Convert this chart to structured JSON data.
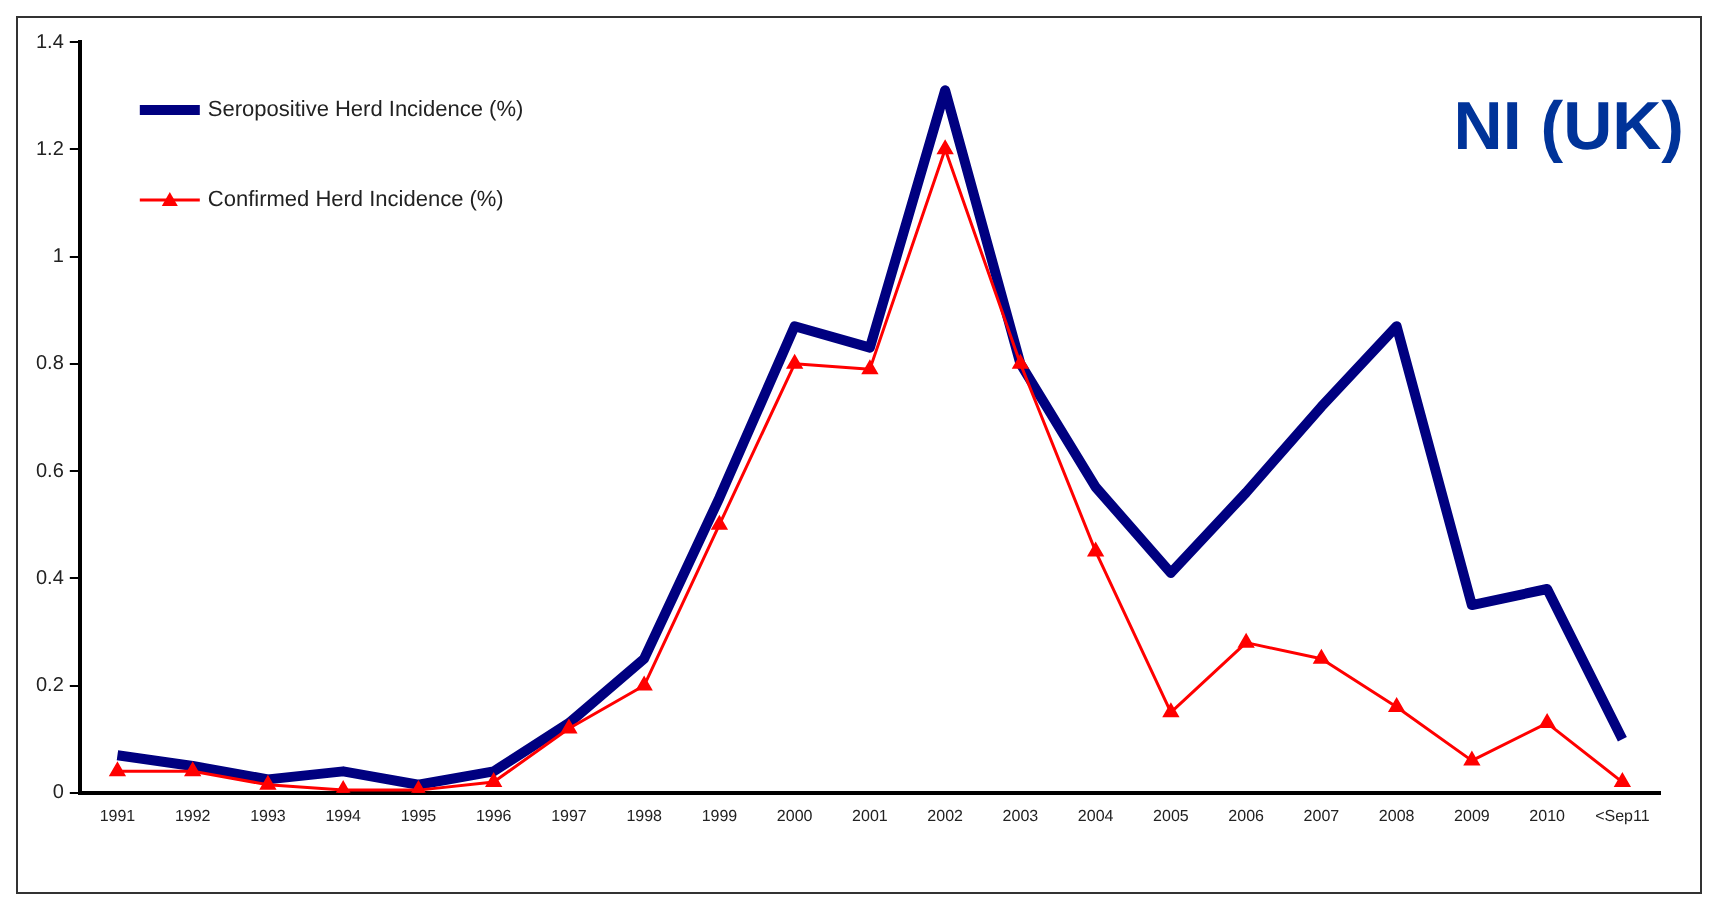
{
  "chart_data": {
    "type": "line",
    "title": "NI (UK)",
    "categories": [
      "1991",
      "1992",
      "1993",
      "1994",
      "1995",
      "1996",
      "1997",
      "1998",
      "1999",
      "2000",
      "2001",
      "2002",
      "2003",
      "2004",
      "2005",
      "2006",
      "2007",
      "2008",
      "2009",
      "2010",
      "<Sep11"
    ],
    "series": [
      {
        "name": "Seropositive Herd Incidence (%)",
        "color": "#000080",
        "marker": "none",
        "values": [
          0.07,
          0.05,
          0.025,
          0.04,
          0.015,
          0.04,
          0.13,
          0.25,
          0.55,
          0.87,
          0.83,
          1.31,
          0.8,
          0.57,
          0.41,
          0.56,
          0.72,
          0.87,
          0.35,
          0.38,
          0.1
        ]
      },
      {
        "name": "Confirmed Herd Incidence (%)",
        "color": "#ff0000",
        "marker": "triangle",
        "values": [
          0.04,
          0.04,
          0.015,
          0.005,
          0.005,
          0.02,
          0.12,
          0.2,
          0.5,
          0.8,
          0.79,
          1.2,
          0.8,
          0.45,
          0.15,
          0.28,
          0.25,
          0.16,
          0.06,
          0.13,
          0.02
        ]
      }
    ],
    "ylim": [
      0,
      1.4
    ],
    "yticks": [
      0,
      0.2,
      0.4,
      0.6,
      0.8,
      1,
      1.2,
      1.4
    ],
    "grid": false,
    "legend": "top left",
    "line_style": "solid"
  }
}
